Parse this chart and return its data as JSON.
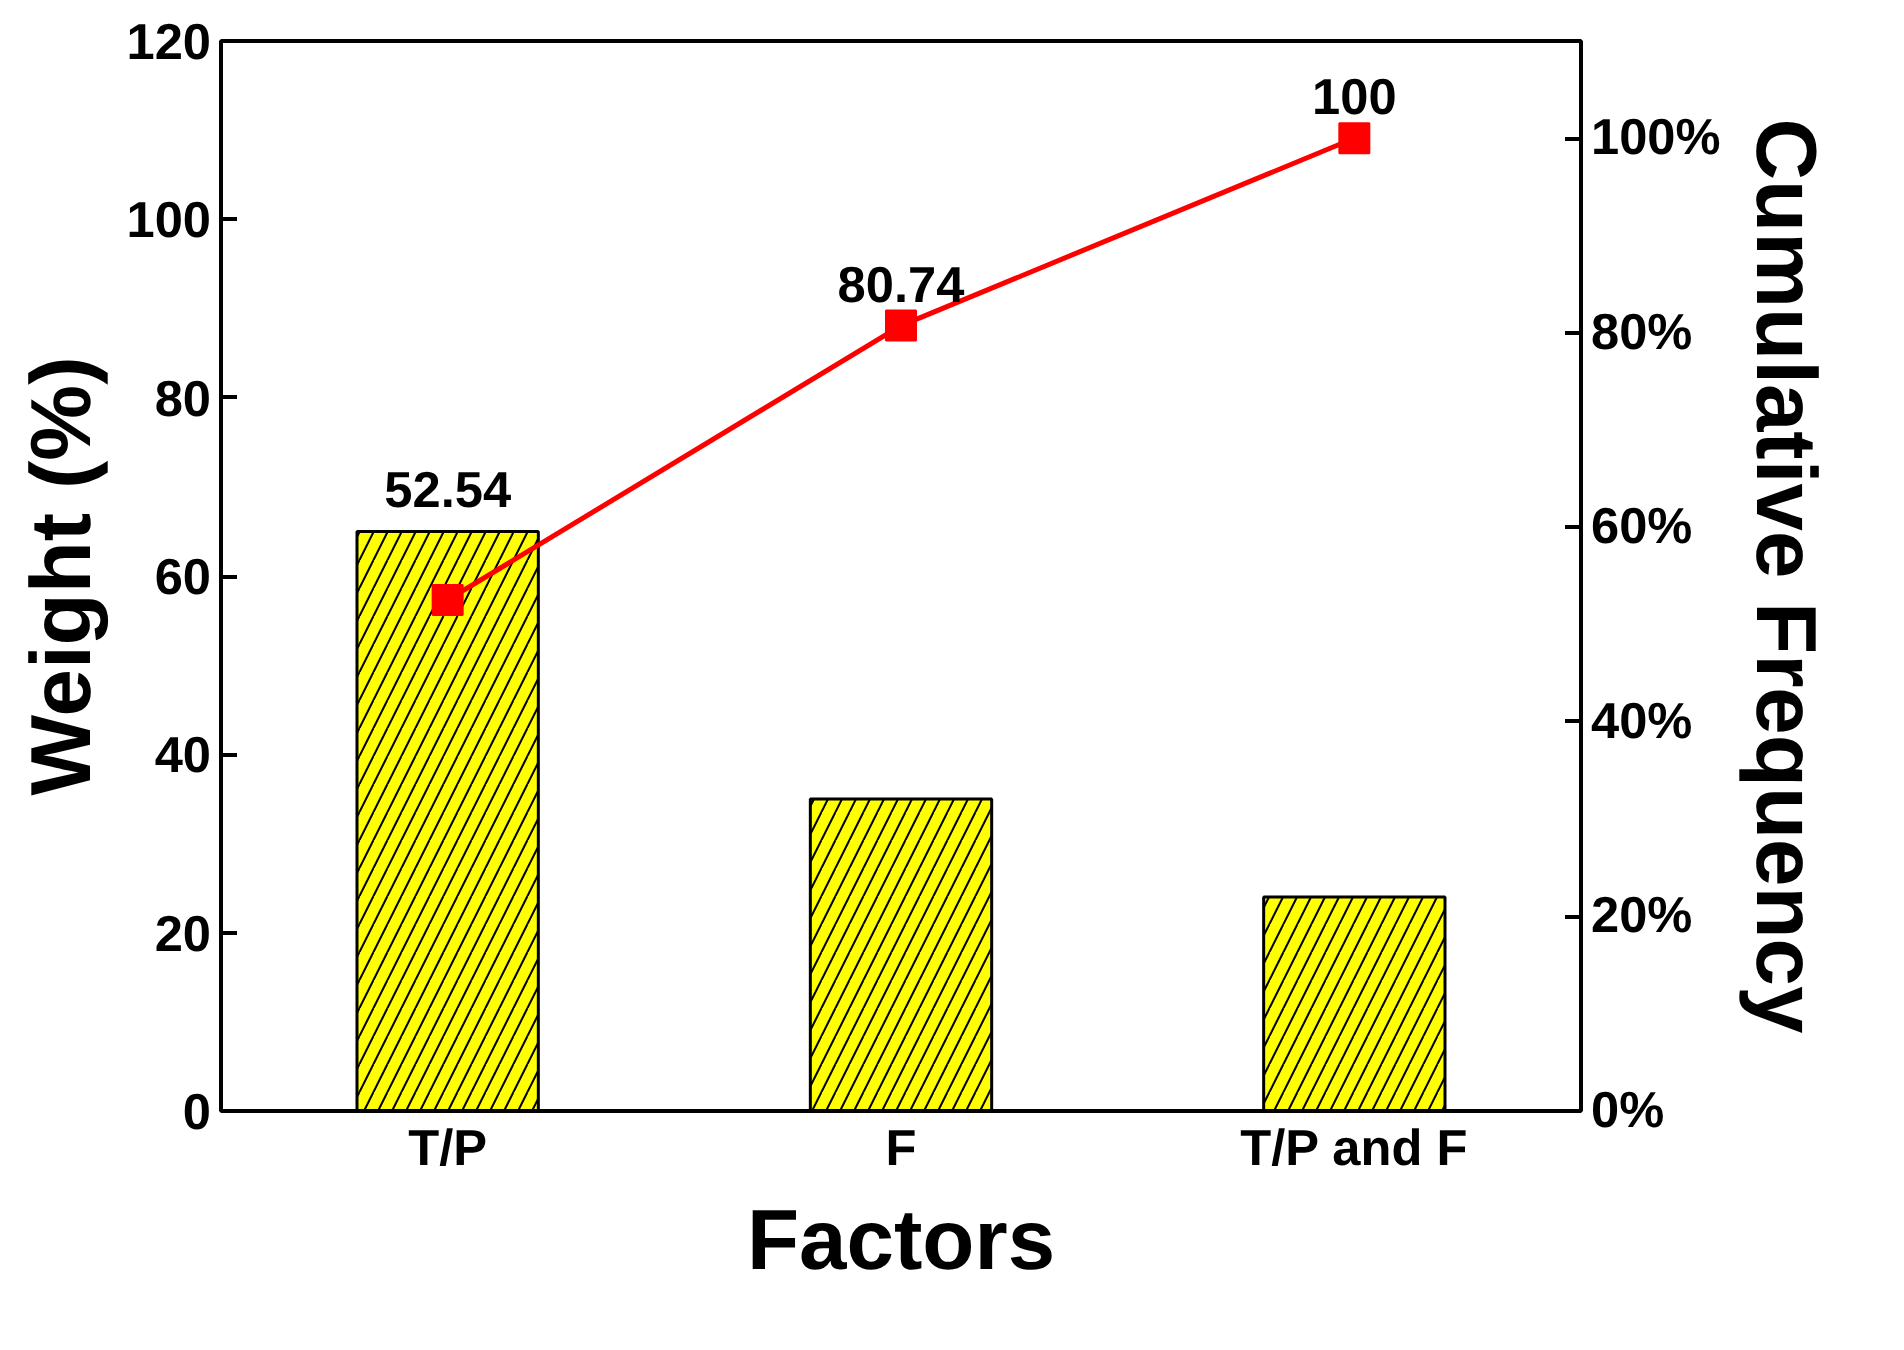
{
  "chart_data": {
    "type": "bar",
    "xlabel": "Factors",
    "ylabel": "Weight (%)",
    "y2label": "Cumulative Frequency",
    "categories": [
      "T/P",
      "F",
      "T/P and F"
    ],
    "series": [
      {
        "color": "#ffff00",
        "values": [
          65,
          35,
          24
        ]
      },
      {
        "type": "line",
        "axis": "y2",
        "color": "#ff0000",
        "values": [
          52.54,
          80.74,
          100
        ],
        "value_labels": [
          "52.54",
          "80.74",
          "100"
        ]
      }
    ],
    "ylim": [
      0,
      120
    ],
    "yticks": [
      0,
      20,
      40,
      60,
      80,
      100,
      120
    ],
    "y2lim": [
      0,
      110
    ],
    "y2ticks": [
      {
        "value": 0,
        "label": "0%"
      },
      {
        "value": 20,
        "label": "20%"
      },
      {
        "value": 40,
        "label": "40%"
      },
      {
        "value": 60,
        "label": "60%"
      },
      {
        "value": 80,
        "label": "80%"
      },
      {
        "value": 100,
        "label": "100%"
      }
    ],
    "grid": false,
    "marker": "square",
    "line_style": "solid"
  }
}
